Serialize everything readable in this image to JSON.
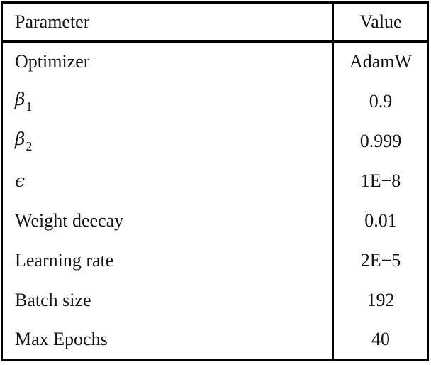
{
  "figure": {
    "kind": "hyperparameter-table",
    "colors": {
      "background": "#ffffff",
      "rule": "#000000",
      "text": "#151515"
    },
    "header": {
      "parameter": "Parameter",
      "value": "Value"
    },
    "rows": [
      {
        "param": "Optimizer",
        "value": "AdamW"
      },
      {
        "param": "β",
        "param_sub": "1",
        "math": true,
        "value": "0.9"
      },
      {
        "param": "β",
        "param_sub": "2",
        "math": true,
        "value": "0.999"
      },
      {
        "param": "ϵ",
        "math": true,
        "value": "1E−8"
      },
      {
        "param": "Weight deecay",
        "value": "0.01"
      },
      {
        "param": "Learning rate",
        "value": "2E−5"
      },
      {
        "param": "Batch size",
        "value": "192"
      },
      {
        "param": "Max Epochs",
        "value": "40"
      }
    ]
  }
}
